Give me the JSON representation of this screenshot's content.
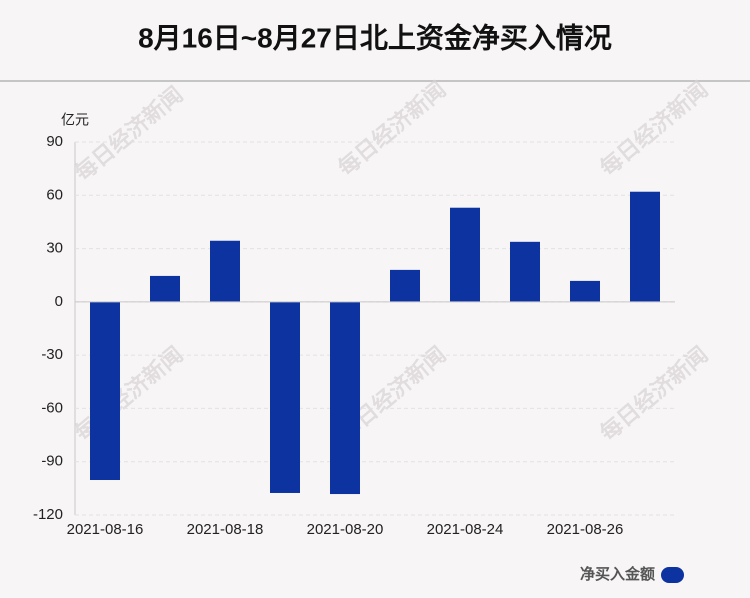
{
  "chart_data": {
    "type": "bar",
    "title": "8月16日~8月27日北上资金净买入情况",
    "y_axis_label": "亿元",
    "watermark": "每日经济新闻",
    "categories": [
      "2021-08-16",
      null,
      "2021-08-18",
      null,
      "2021-08-20",
      null,
      "2021-08-24",
      null,
      "2021-08-26",
      null
    ],
    "series": [
      {
        "name": "净买入金额",
        "color": "#0c33a0",
        "values": [
          -100.3,
          14.6,
          34.4,
          -107.6,
          -108.2,
          18.0,
          53.0,
          33.8,
          11.8,
          62.0
        ]
      }
    ],
    "ylim": [
      -120,
      90
    ],
    "yticks": [
      -120,
      -90,
      -60,
      -30,
      0,
      30,
      60,
      90
    ],
    "grid": true,
    "legend": "bottom-right"
  }
}
